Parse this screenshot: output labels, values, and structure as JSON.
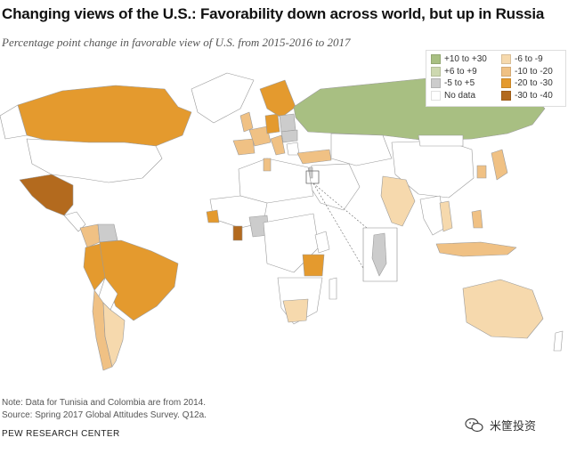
{
  "title": "Changing views of the U.S.: Favorability down across world, but up in Russia",
  "subtitle": "Percentage point change in favorable view of U.S. from 2015-2016 to 2017",
  "legend": [
    {
      "label": "+10 to +30",
      "color": "#a8bf82"
    },
    {
      "label": "+6 to +9",
      "color": "#cdd8b0"
    },
    {
      "label": "-5 to +5",
      "color": "#cccccc"
    },
    {
      "label": "No data",
      "color": "#ffffff"
    },
    {
      "label": "-6 to -9",
      "color": "#f6d9ad"
    },
    {
      "label": "-10 to -20",
      "color": "#f0c184"
    },
    {
      "label": "-20 to -30",
      "color": "#e49a2e"
    },
    {
      "label": "-30 to -40",
      "color": "#b36a1e"
    }
  ],
  "note": "Note: Data for Tunisia and Colombia are from 2014.",
  "source": "Source: Spring 2017 Global Attitudes Survey. Q12a.",
  "footer": "PEW RESEARCH CENTER",
  "watermark": "米筐投资",
  "icons": {
    "watermark": "wechat-icon"
  }
}
